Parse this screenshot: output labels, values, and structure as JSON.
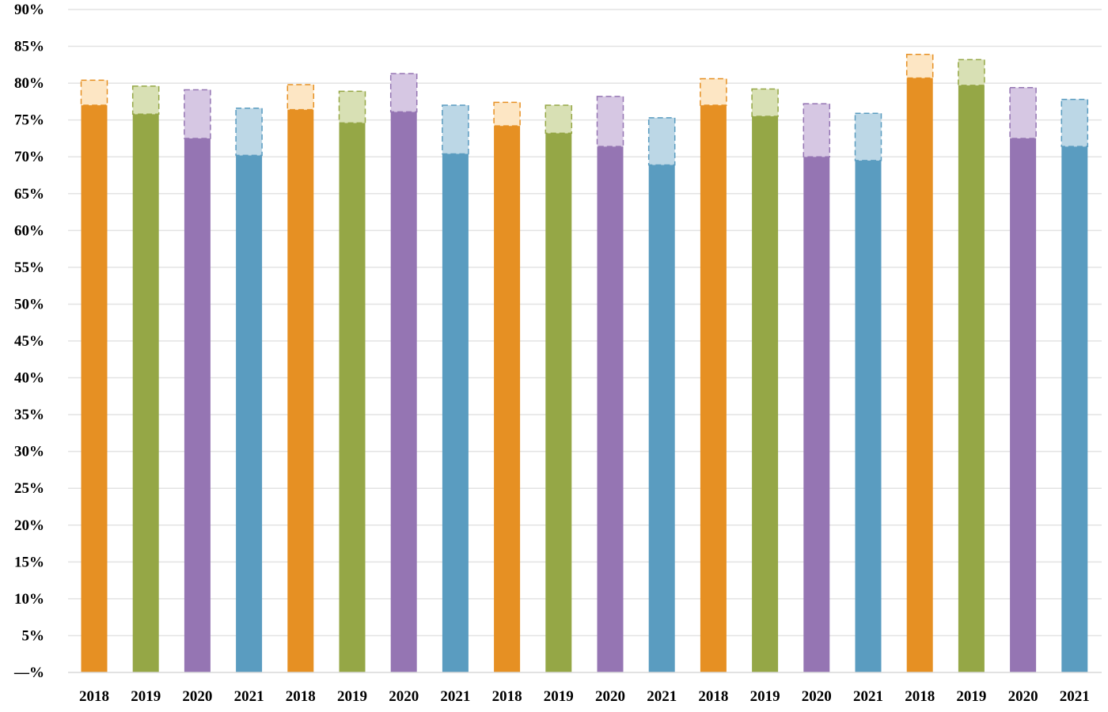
{
  "chart_data": {
    "type": "bar",
    "stacked": true,
    "title": "",
    "xlabel": "",
    "ylabel": "",
    "ylim": [
      0,
      90
    ],
    "y_tick_step": 5,
    "y_tick_labels": [
      "—%",
      "5%",
      "10%",
      "15%",
      "20%",
      "25%",
      "30%",
      "35%",
      "40%",
      "45%",
      "50%",
      "55%",
      "60%",
      "65%",
      "70%",
      "75%",
      "80%",
      "85%",
      "90%"
    ],
    "grid": true,
    "legend": "none",
    "categories": [
      "2018",
      "2019",
      "2020",
      "2021",
      "2018",
      "2019",
      "2020",
      "2021",
      "2018",
      "2019",
      "2020",
      "2021",
      "2018",
      "2019",
      "2020",
      "2021",
      "2018",
      "2019",
      "2020",
      "2021"
    ],
    "series": [
      {
        "role": "base",
        "values": [
          77.0,
          75.8,
          72.5,
          70.2,
          76.4,
          74.6,
          76.1,
          70.4,
          74.2,
          73.2,
          71.4,
          68.9,
          77.0,
          75.5,
          70.0,
          69.5,
          80.7,
          79.7,
          72.5,
          71.4
        ]
      },
      {
        "role": "increment",
        "style": "dashed-light",
        "values": [
          3.4,
          3.8,
          6.6,
          6.4,
          3.4,
          4.3,
          5.2,
          6.6,
          3.2,
          3.8,
          6.8,
          6.4,
          3.6,
          3.7,
          7.2,
          6.4,
          3.2,
          3.5,
          6.9,
          6.4
        ]
      }
    ],
    "category_colors": [
      "#e69023",
      "#95a746",
      "#9575b3",
      "#5a9cc0"
    ],
    "category_light_colors": [
      "#fde6c4",
      "#d8e0b4",
      "#d6c7e3",
      "#bcd7e6"
    ],
    "category_border_colors": [
      "#e69023",
      "#95a746",
      "#9575b3",
      "#5a9cc0"
    ],
    "gridline_color": "#e3e3e3"
  }
}
